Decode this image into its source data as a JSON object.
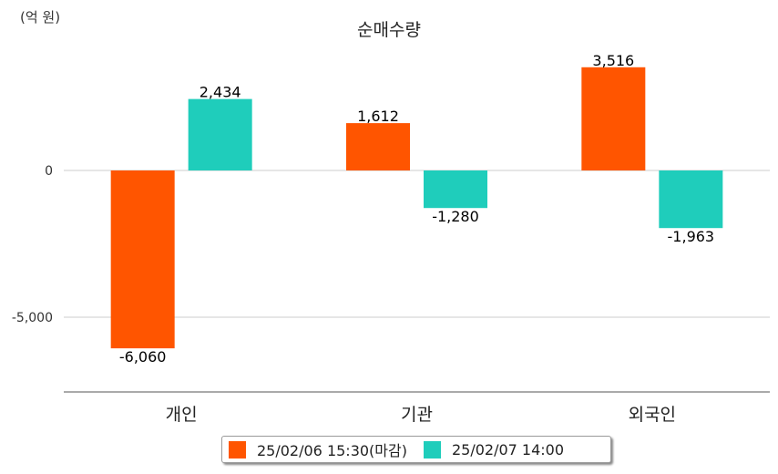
{
  "unit_label": "(억 원)",
  "chart_data": {
    "type": "bar",
    "title": "순매수량",
    "categories": [
      "개인",
      "기관",
      "외국인"
    ],
    "series": [
      {
        "name": "25/02/06 15:30(마감)",
        "color": "#ff5500",
        "values": [
          -6060,
          1612,
          3516
        ],
        "labels": [
          "-6,060",
          "1,612",
          "3,516"
        ]
      },
      {
        "name": "25/02/07 14:00",
        "color": "#1fcdbb",
        "values": [
          2434,
          -1280,
          -1963
        ],
        "labels": [
          "2,434",
          "-1,280",
          "-1,963"
        ]
      }
    ],
    "y_ticks": [
      0,
      -5000
    ],
    "y_tick_labels": [
      "0",
      "-5,000"
    ],
    "ylim": [
      -7700,
      5800
    ],
    "grid": true,
    "legend_position": "bottom"
  }
}
